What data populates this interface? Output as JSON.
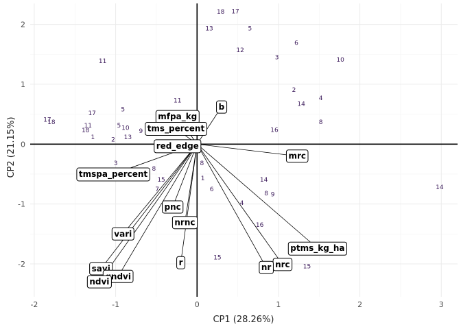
{
  "chart_data": {
    "type": "scatter",
    "title": "",
    "xlabel": "CP1 (28.26%)",
    "ylabel": "CP2 (21.15%)",
    "xlim": [
      -2.05,
      3.2
    ],
    "ylim": [
      -2.55,
      2.35
    ],
    "xticks": [
      -2,
      -1,
      0,
      1,
      2,
      3
    ],
    "yticks": [
      -2,
      -1,
      0,
      1,
      2
    ],
    "grid": true,
    "legend": "none",
    "colors": {
      "observation": "#3b1a5a",
      "vector": "#000000",
      "axis_line": "#000000"
    },
    "observations": [
      {
        "label": "18",
        "x": 0.29,
        "y": 2.21
      },
      {
        "label": "17",
        "x": 0.47,
        "y": 2.22
      },
      {
        "label": "13",
        "x": 0.15,
        "y": 1.93
      },
      {
        "label": "5",
        "x": 0.65,
        "y": 1.93
      },
      {
        "label": "12",
        "x": 0.53,
        "y": 1.57
      },
      {
        "label": "6",
        "x": 1.22,
        "y": 1.69
      },
      {
        "label": "3",
        "x": 0.98,
        "y": 1.45
      },
      {
        "label": "10",
        "x": 1.76,
        "y": 1.41
      },
      {
        "label": "11",
        "x": -1.16,
        "y": 1.39
      },
      {
        "label": "2",
        "x": 1.19,
        "y": 0.91
      },
      {
        "label": "4",
        "x": 1.52,
        "y": 0.77
      },
      {
        "label": "14",
        "x": 1.28,
        "y": 0.67
      },
      {
        "label": "8",
        "x": 1.52,
        "y": 0.37
      },
      {
        "label": "16",
        "x": 0.95,
        "y": 0.24
      },
      {
        "label": "11",
        "x": -0.24,
        "y": 0.73
      },
      {
        "label": "5",
        "x": -0.91,
        "y": 0.58
      },
      {
        "label": "17",
        "x": -1.29,
        "y": 0.52
      },
      {
        "label": "17",
        "x": -1.84,
        "y": 0.41
      },
      {
        "label": "18",
        "x": -1.79,
        "y": 0.37
      },
      {
        "label": "11",
        "x": -1.34,
        "y": 0.31
      },
      {
        "label": "5",
        "x": -0.96,
        "y": 0.31
      },
      {
        "label": "10",
        "x": -0.88,
        "y": 0.27
      },
      {
        "label": "9",
        "x": -0.69,
        "y": 0.22
      },
      {
        "label": "18",
        "x": -1.37,
        "y": 0.23
      },
      {
        "label": "1",
        "x": -1.28,
        "y": 0.12
      },
      {
        "label": "2",
        "x": -1.03,
        "y": 0.08
      },
      {
        "label": "13",
        "x": -0.85,
        "y": 0.12
      },
      {
        "label": "3",
        "x": -1.0,
        "y": -0.32
      },
      {
        "label": "8",
        "x": -0.53,
        "y": -0.41
      },
      {
        "label": "15",
        "x": -0.44,
        "y": -0.59
      },
      {
        "label": "7",
        "x": -0.49,
        "y": -0.75
      },
      {
        "label": "8",
        "x": 0.06,
        "y": -0.32
      },
      {
        "label": "1",
        "x": 0.07,
        "y": -0.57
      },
      {
        "label": "6",
        "x": 0.18,
        "y": -0.75
      },
      {
        "label": "14",
        "x": 0.82,
        "y": -0.59
      },
      {
        "label": "8",
        "x": 0.85,
        "y": -0.82
      },
      {
        "label": "9",
        "x": 0.93,
        "y": -0.84
      },
      {
        "label": "4",
        "x": 0.55,
        "y": -0.98
      },
      {
        "label": "16",
        "x": 0.77,
        "y": -1.35
      },
      {
        "label": "14",
        "x": 2.98,
        "y": -0.72
      },
      {
        "label": "15",
        "x": 0.25,
        "y": -1.89
      },
      {
        "label": "15",
        "x": 1.35,
        "y": -2.04
      }
    ],
    "vectors": [
      {
        "name": "mfpa_kg",
        "x": -0.24,
        "y": 0.46
      },
      {
        "name": "b",
        "x": 0.3,
        "y": 0.62
      },
      {
        "name": "tms_percent",
        "x": -0.26,
        "y": 0.26
      },
      {
        "name": "red_edge",
        "x": -0.24,
        "y": -0.03
      },
      {
        "name": "mrc",
        "x": 1.23,
        "y": -0.2
      },
      {
        "name": "tmspa_percent",
        "x": -1.03,
        "y": -0.5
      },
      {
        "name": "pnc",
        "x": -0.3,
        "y": -1.05
      },
      {
        "name": "nrnc",
        "x": -0.15,
        "y": -1.31
      },
      {
        "name": "vari",
        "x": -0.91,
        "y": -1.5
      },
      {
        "name": "r",
        "x": -0.2,
        "y": -1.98
      },
      {
        "name": "savi",
        "x": -1.18,
        "y": -2.08
      },
      {
        "name": "gndvi",
        "x": -0.97,
        "y": -2.21
      },
      {
        "name": "ndvi",
        "x": -1.2,
        "y": -2.3
      },
      {
        "name": "ptms_kg_ha",
        "x": 1.48,
        "y": -1.74
      },
      {
        "name": "nrc",
        "x": 1.05,
        "y": -2.01
      },
      {
        "name": "nr",
        "x": 0.85,
        "y": -2.06
      }
    ]
  }
}
